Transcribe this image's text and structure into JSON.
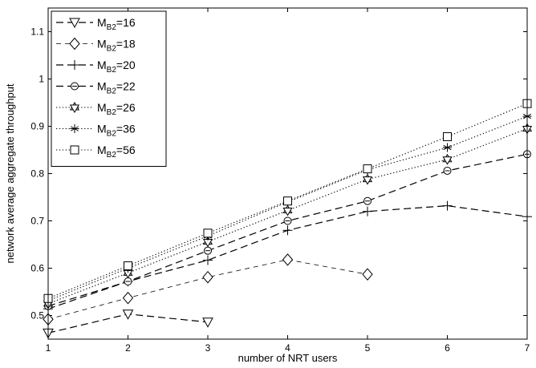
{
  "chart_data": {
    "type": "line",
    "title": "",
    "xlabel": "number of NRT users",
    "ylabel": "network average aggregate throughput",
    "xlim": [
      1,
      7
    ],
    "ylim": [
      0.45,
      1.15
    ],
    "xticks": [
      1,
      2,
      3,
      4,
      5,
      6,
      7
    ],
    "yticks": [
      0.5,
      0.6,
      0.7,
      0.8,
      0.9,
      1,
      1.1
    ],
    "xtick_labels": [
      "1",
      "2",
      "3",
      "4",
      "5",
      "6",
      "7"
    ],
    "ytick_labels": [
      "0.5",
      "0.6",
      "0.7",
      "0.8",
      "0.9",
      "1",
      "1.1"
    ],
    "grid": false,
    "legend_position": "top-left",
    "series": [
      {
        "label_main": "M",
        "label_sub": "B2",
        "label_suffix": "=16",
        "marker": "triangle-down",
        "linestyle": "dashed-long",
        "x": [
          1,
          2,
          3
        ],
        "y": [
          0.463,
          0.503,
          0.486
        ]
      },
      {
        "label_main": "M",
        "label_sub": "B2",
        "label_suffix": "=18",
        "marker": "diamond",
        "linestyle": "dashed-thin",
        "x": [
          1,
          2,
          3,
          4,
          5
        ],
        "y": [
          0.492,
          0.537,
          0.581,
          0.618,
          0.587
        ]
      },
      {
        "label_main": "M",
        "label_sub": "B2",
        "label_suffix": "=20",
        "marker": "plus",
        "linestyle": "dashed-long",
        "x": [
          1,
          2,
          3,
          4,
          5,
          6,
          7
        ],
        "y": [
          0.514,
          0.572,
          0.617,
          0.68,
          0.72,
          0.732,
          0.709
        ]
      },
      {
        "label_main": "M",
        "label_sub": "B2",
        "label_suffix": "=22",
        "marker": "circle",
        "linestyle": "dashed-long",
        "x": [
          1,
          2,
          3,
          4,
          5,
          6,
          7
        ],
        "y": [
          0.52,
          0.572,
          0.637,
          0.7,
          0.742,
          0.806,
          0.841
        ]
      },
      {
        "label_main": "M",
        "label_sub": "B2",
        "label_suffix": "=26",
        "marker": "hexagram",
        "linestyle": "dotted",
        "x": [
          1,
          2,
          3,
          4,
          5,
          6,
          7
        ],
        "y": [
          0.525,
          0.59,
          0.656,
          0.722,
          0.788,
          0.83,
          0.895
        ]
      },
      {
        "label_main": "M",
        "label_sub": "B2",
        "label_suffix": "=36",
        "marker": "asterisk",
        "linestyle": "dotted",
        "x": [
          1,
          2,
          3,
          4,
          5,
          6,
          7
        ],
        "y": [
          0.531,
          0.6,
          0.668,
          0.74,
          0.808,
          0.855,
          0.921
        ]
      },
      {
        "label_main": "M",
        "label_sub": "B2",
        "label_suffix": "=56",
        "marker": "square",
        "linestyle": "dotted",
        "x": [
          1,
          2,
          3,
          4,
          5,
          6,
          7
        ],
        "y": [
          0.536,
          0.605,
          0.674,
          0.742,
          0.81,
          0.878,
          0.948
        ]
      }
    ]
  }
}
